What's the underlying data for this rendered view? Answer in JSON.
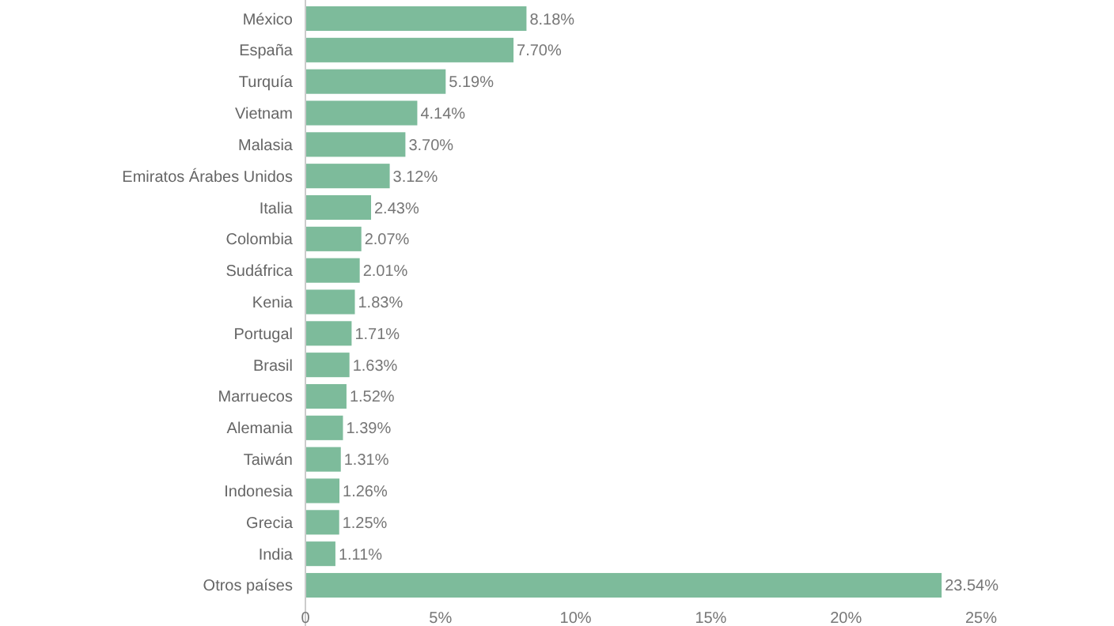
{
  "chart_data": {
    "type": "bar",
    "orientation": "horizontal",
    "categories": [
      "México",
      "España",
      "Turquía",
      "Vietnam",
      "Malasia",
      "Emiratos Árabes Unidos",
      "Italia",
      "Colombia",
      "Sudáfrica",
      "Kenia",
      "Portugal",
      "Brasil",
      "Marruecos",
      "Alemania",
      "Taiwán",
      "Indonesia",
      "Grecia",
      "India",
      "Otros países"
    ],
    "values": [
      8.18,
      7.7,
      5.19,
      4.14,
      3.7,
      3.12,
      2.43,
      2.07,
      2.01,
      1.83,
      1.71,
      1.63,
      1.52,
      1.39,
      1.31,
      1.26,
      1.25,
      1.11,
      23.54
    ],
    "value_labels": [
      "8.18%",
      "7.70%",
      "5.19%",
      "4.14%",
      "3.70%",
      "3.12%",
      "2.43%",
      "2.07%",
      "2.01%",
      "1.83%",
      "1.71%",
      "1.63%",
      "1.52%",
      "1.39%",
      "1.31%",
      "1.26%",
      "1.25%",
      "1.11%",
      "23.54%"
    ],
    "color": "#7dbb9b",
    "xlim": [
      0,
      25
    ],
    "xticks": [
      {
        "value": 0,
        "label": "0"
      },
      {
        "value": 5,
        "label": "5%"
      },
      {
        "value": 10,
        "label": "10%"
      },
      {
        "value": 15,
        "label": "15%"
      },
      {
        "value": 20,
        "label": "20%"
      },
      {
        "value": 25,
        "label": "25%"
      }
    ],
    "grid": false
  }
}
